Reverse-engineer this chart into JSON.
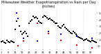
{
  "title": "Milwaukee Weather Evapotranspiration vs Rain per Day\n(Inches)",
  "title_fontsize": 3.5,
  "title_color": "#000000",
  "ylim": [
    -0.05,
    0.58
  ],
  "background_color": "#ffffff",
  "grid_color": "#aaaaaa",
  "et_color": "#000000",
  "rain_color": "#0000cc",
  "diff_color": "#cc0000",
  "marker_size": 0.8,
  "n_points": 70,
  "vline_positions": [
    0,
    10,
    20,
    30,
    40,
    50,
    60,
    69
  ],
  "yticks": [
    0.0,
    0.1,
    0.2,
    0.3,
    0.4,
    0.5
  ],
  "ytick_labels": [
    "0",
    ".1",
    ".2",
    ".3",
    ".4",
    ".5"
  ],
  "xtick_step": 5,
  "et_values": [
    0.07,
    0.08,
    0.06,
    0.05,
    0.09,
    0.07,
    0.06,
    0.08,
    0.07,
    0.06,
    0.25,
    0.38,
    0.42,
    0.3,
    0.22,
    0.18,
    0.2,
    0.22,
    0.19,
    0.15,
    0.35,
    0.38,
    0.4,
    0.45,
    0.43,
    0.44,
    0.42,
    0.38,
    0.36,
    0.35,
    0.44,
    0.46,
    0.45,
    0.43,
    0.41,
    0.42,
    0.4,
    0.39,
    0.37,
    0.35,
    0.35,
    0.3,
    0.28,
    0.27,
    0.3,
    0.32,
    0.28,
    0.26,
    0.24,
    0.22,
    0.2,
    0.19,
    0.22,
    0.2,
    0.18,
    0.16,
    0.14,
    0.13,
    0.12,
    0.11,
    0.09,
    0.1,
    0.11,
    0.09,
    0.08,
    0.07,
    0.09,
    0.08,
    0.07,
    0.06
  ],
  "rain_values": [
    0.0,
    0.0,
    0.0,
    0.0,
    0.0,
    0.0,
    0.0,
    0.0,
    0.0,
    0.0,
    0.0,
    0.5,
    0.42,
    0.0,
    0.0,
    0.0,
    0.12,
    0.0,
    0.0,
    0.0,
    0.0,
    0.0,
    0.0,
    0.0,
    0.0,
    0.0,
    0.08,
    0.0,
    0.0,
    0.0,
    0.0,
    0.0,
    0.0,
    0.0,
    0.22,
    0.0,
    0.0,
    0.0,
    0.0,
    0.0,
    0.0,
    0.0,
    0.0,
    0.18,
    0.0,
    0.0,
    0.0,
    0.0,
    0.0,
    0.0,
    0.0,
    0.0,
    0.0,
    0.0,
    0.0,
    0.15,
    0.0,
    0.0,
    0.0,
    0.0,
    0.0,
    0.0,
    0.0,
    0.0,
    0.0,
    0.0,
    0.12,
    0.0,
    0.0,
    0.0
  ],
  "diff_values": [
    0.07,
    0.08,
    0.06,
    0.05,
    0.09,
    0.07,
    0.06,
    0.08,
    0.07,
    0.06,
    0.25,
    -0.12,
    -0.0,
    0.3,
    0.22,
    0.18,
    0.08,
    0.22,
    0.19,
    0.15,
    0.35,
    0.38,
    0.4,
    0.45,
    0.43,
    0.44,
    0.34,
    0.38,
    0.36,
    0.35,
    0.44,
    0.46,
    0.45,
    0.43,
    0.19,
    0.42,
    0.4,
    0.39,
    0.37,
    0.35,
    0.35,
    0.3,
    0.28,
    0.09,
    0.3,
    0.32,
    0.28,
    0.26,
    0.24,
    0.22,
    0.2,
    0.19,
    0.22,
    0.2,
    0.18,
    0.01,
    0.14,
    0.13,
    0.12,
    0.11,
    0.09,
    0.1,
    0.11,
    0.09,
    0.08,
    0.07,
    -0.03,
    0.08,
    0.07,
    0.06
  ]
}
